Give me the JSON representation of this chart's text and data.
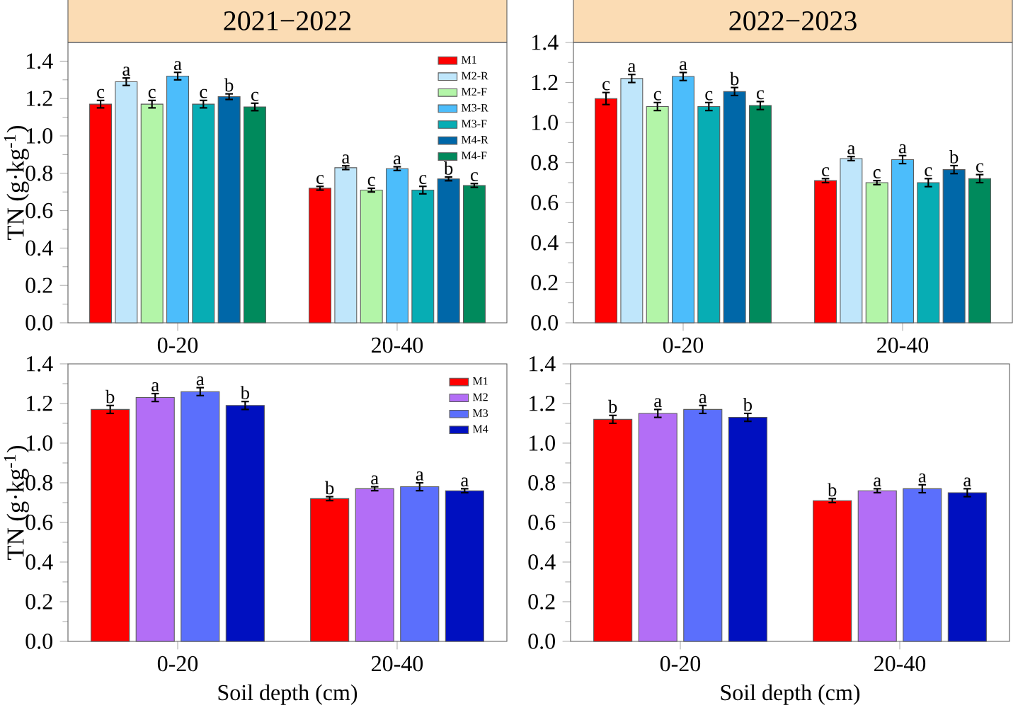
{
  "chart_data": [
    {
      "type": "bar",
      "title": "2021−2022",
      "ylabel": "TN (g·kg$^{-1}$)",
      "categories": [
        "0-20",
        "20-40"
      ],
      "legend": "top right",
      "ylim": [
        0,
        1.5
      ],
      "yticks": [
        {
          "value": 0,
          "label": "0.0"
        },
        {
          "value": 0.2,
          "label": "0.2"
        },
        {
          "value": 0.4,
          "label": "0.4"
        },
        {
          "value": 0.6,
          "label": "0.6"
        },
        {
          "value": 0.8,
          "label": "0.8"
        },
        {
          "value": 1.0,
          "label": "1.0"
        },
        {
          "value": 1.2,
          "label": "1.2"
        },
        {
          "value": 1.4,
          "label": "1.4"
        }
      ],
      "series": [
        {
          "name": "M1",
          "color": "#ff0000",
          "values": [
            1.17,
            0.72
          ],
          "errors": [
            0.02,
            0.01
          ],
          "value_labels": [
            "c",
            "c"
          ]
        },
        {
          "name": "M2-R",
          "color": "#bfe6fb",
          "values": [
            1.29,
            0.83
          ],
          "errors": [
            0.02,
            0.01
          ],
          "value_labels": [
            "a",
            "a"
          ]
        },
        {
          "name": "M2-F",
          "color": "#b3f5a8",
          "values": [
            1.17,
            0.71
          ],
          "errors": [
            0.02,
            0.01
          ],
          "value_labels": [
            "c",
            "c"
          ]
        },
        {
          "name": "M3-R",
          "color": "#4cbdfb",
          "values": [
            1.32,
            0.825
          ],
          "errors": [
            0.02,
            0.01
          ],
          "value_labels": [
            "a",
            "a"
          ]
        },
        {
          "name": "M3-F",
          "color": "#07adb4",
          "values": [
            1.17,
            0.71
          ],
          "errors": [
            0.02,
            0.02
          ],
          "value_labels": [
            "c",
            "c"
          ]
        },
        {
          "name": "M4-R",
          "color": "#0067a8",
          "values": [
            1.21,
            0.77
          ],
          "errors": [
            0.015,
            0.01
          ],
          "value_labels": [
            "b",
            "b"
          ]
        },
        {
          "name": "M4-F",
          "color": "#008a5c",
          "values": [
            1.155,
            0.735
          ],
          "errors": [
            0.02,
            0.01
          ],
          "value_labels": [
            "c",
            "c"
          ]
        }
      ]
    },
    {
      "type": "bar",
      "title": "2022−2023",
      "categories": [
        "0-20",
        "20-40"
      ],
      "ylim": [
        0,
        1.4
      ],
      "yticks": [
        {
          "value": 0,
          "label": "0.0"
        },
        {
          "value": 0.2,
          "label": "0.2"
        },
        {
          "value": 0.4,
          "label": "0.4"
        },
        {
          "value": 0.6,
          "label": "0.6"
        },
        {
          "value": 0.8,
          "label": "0.8"
        },
        {
          "value": 1.0,
          "label": "1.0"
        },
        {
          "value": 1.2,
          "label": "1.2"
        },
        {
          "value": 1.4,
          "label": "1.4"
        }
      ],
      "series": [
        {
          "color": "#ff0000",
          "values": [
            1.12,
            0.71
          ],
          "errors": [
            0.03,
            0.01
          ],
          "value_labels": [
            "c",
            "c"
          ]
        },
        {
          "color": "#bfe6fb",
          "values": [
            1.22,
            0.82
          ],
          "errors": [
            0.02,
            0.01
          ],
          "value_labels": [
            "a",
            "a"
          ]
        },
        {
          "color": "#b3f5a8",
          "values": [
            1.08,
            0.7
          ],
          "errors": [
            0.02,
            0.01
          ],
          "value_labels": [
            "c",
            "c"
          ]
        },
        {
          "color": "#4cbdfb",
          "values": [
            1.23,
            0.815
          ],
          "errors": [
            0.02,
            0.02
          ],
          "value_labels": [
            "a",
            "a"
          ]
        },
        {
          "color": "#07adb4",
          "values": [
            1.08,
            0.7
          ],
          "errors": [
            0.02,
            0.02
          ],
          "value_labels": [
            "c",
            "c"
          ]
        },
        {
          "color": "#0067a8",
          "values": [
            1.155,
            0.765
          ],
          "errors": [
            0.02,
            0.02
          ],
          "value_labels": [
            "b",
            "b"
          ]
        },
        {
          "color": "#008a5c",
          "values": [
            1.085,
            0.72
          ],
          "errors": [
            0.02,
            0.02
          ],
          "value_labels": [
            "c",
            "c"
          ]
        }
      ]
    },
    {
      "type": "bar",
      "ylabel": "TN (g·kg$^{-1}$)",
      "xlabel": "Soil depth (cm)",
      "categories": [
        "0-20",
        "20-40"
      ],
      "legend": "top right",
      "ylim": [
        0,
        1.4
      ],
      "yticks": [
        {
          "value": 0,
          "label": "0.0"
        },
        {
          "value": 0.2,
          "label": "0.2"
        },
        {
          "value": 0.4,
          "label": "0.4"
        },
        {
          "value": 0.6,
          "label": "0.6"
        },
        {
          "value": 0.8,
          "label": "0.8"
        },
        {
          "value": 1.0,
          "label": "1.0"
        },
        {
          "value": 1.2,
          "label": "1.2"
        },
        {
          "value": 1.4,
          "label": "1.4"
        }
      ],
      "series": [
        {
          "name": "M1",
          "color": "#ff0000",
          "values": [
            1.17,
            0.72
          ],
          "errors": [
            0.02,
            0.01
          ],
          "value_labels": [
            "b",
            "b"
          ]
        },
        {
          "name": "M2",
          "color": "#b36ef6",
          "values": [
            1.23,
            0.77
          ],
          "errors": [
            0.02,
            0.01
          ],
          "value_labels": [
            "a",
            "a"
          ]
        },
        {
          "name": "M3",
          "color": "#5b6ffc",
          "values": [
            1.26,
            0.78
          ],
          "errors": [
            0.02,
            0.02
          ],
          "value_labels": [
            "a",
            "a"
          ]
        },
        {
          "name": "M4",
          "color": "#0010c0",
          "values": [
            1.19,
            0.76
          ],
          "errors": [
            0.02,
            0.01
          ],
          "value_labels": [
            "b",
            "a"
          ]
        }
      ]
    },
    {
      "type": "bar",
      "xlabel": "Soil depth (cm)",
      "categories": [
        "0-20",
        "20-40"
      ],
      "ylim": [
        0,
        1.4
      ],
      "yticks": [
        {
          "value": 0,
          "label": "0.0"
        },
        {
          "value": 0.2,
          "label": "0.2"
        },
        {
          "value": 0.4,
          "label": "0.4"
        },
        {
          "value": 0.6,
          "label": "0.6"
        },
        {
          "value": 0.8,
          "label": "0.8"
        },
        {
          "value": 1.0,
          "label": "1.0"
        },
        {
          "value": 1.2,
          "label": "1.2"
        },
        {
          "value": 1.4,
          "label": "1.4"
        }
      ],
      "series": [
        {
          "color": "#ff0000",
          "values": [
            1.12,
            0.71
          ],
          "errors": [
            0.02,
            0.01
          ],
          "value_labels": [
            "b",
            "b"
          ]
        },
        {
          "color": "#b36ef6",
          "values": [
            1.15,
            0.76
          ],
          "errors": [
            0.02,
            0.01
          ],
          "value_labels": [
            "a",
            "a"
          ]
        },
        {
          "color": "#5b6ffc",
          "values": [
            1.17,
            0.77
          ],
          "errors": [
            0.02,
            0.02
          ],
          "value_labels": [
            "a",
            "a"
          ]
        },
        {
          "color": "#0010c0",
          "values": [
            1.13,
            0.75
          ],
          "errors": [
            0.02,
            0.02
          ],
          "value_labels": [
            "b",
            "a"
          ]
        }
      ]
    }
  ]
}
